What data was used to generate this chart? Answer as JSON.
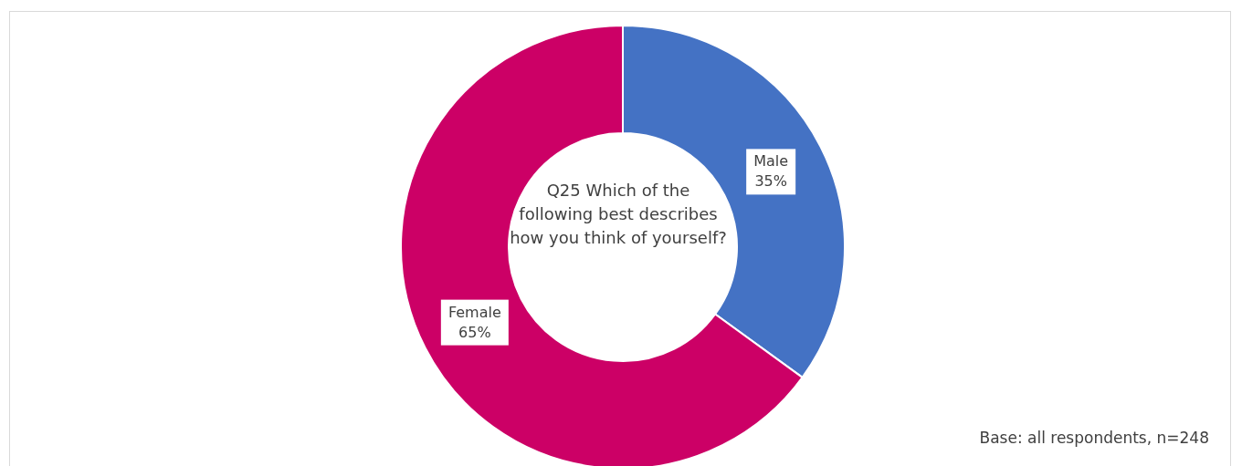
{
  "chart_data": {
    "type": "donut",
    "title": "Q25 Which of the following best describes  how you think of yourself?",
    "categories": [
      "Male",
      "Female"
    ],
    "values": [
      35,
      65
    ],
    "colors": [
      "#4472c4",
      "#cc0066"
    ],
    "value_labels": [
      "35%",
      "65%"
    ],
    "legend": false,
    "annotations": [
      "Base: all respondents, n=248"
    ]
  }
}
